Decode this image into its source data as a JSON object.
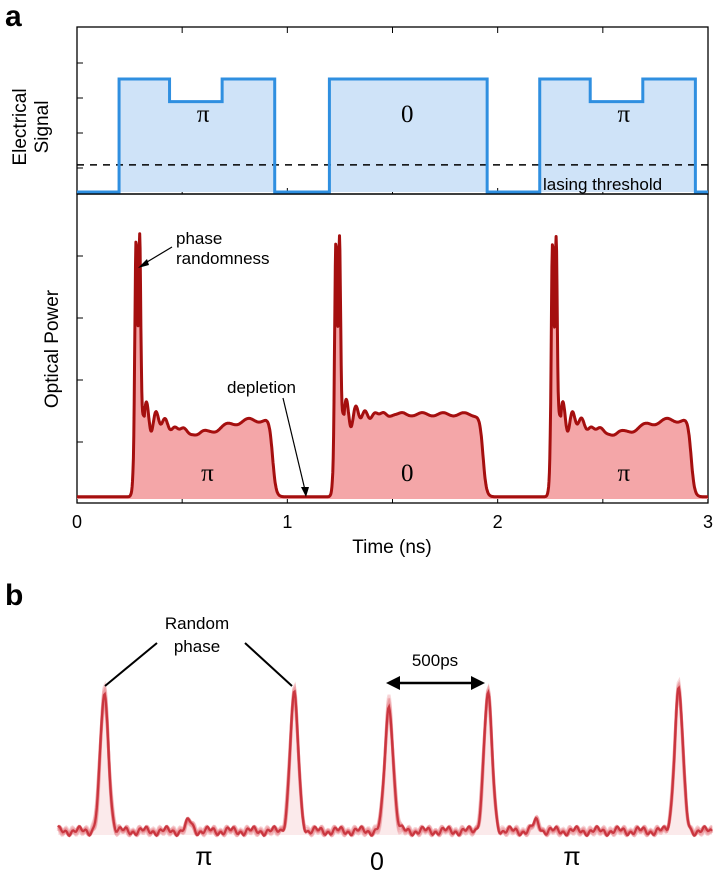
{
  "panel_a": {
    "label": "a",
    "electrical_ylabel_line1": "Electrical",
    "electrical_ylabel_line2": "Signal",
    "optical_ylabel": "Optical Power",
    "xlabel": "Time (ns)",
    "threshold_label": "lasing threshold",
    "annotations": {
      "phase_line1": "phase",
      "phase_line2": "randomness",
      "depletion": "depletion"
    }
  },
  "panel_b": {
    "label": "b",
    "annotation_line1": "Random",
    "annotation_line2": "phase",
    "spacing_label": "500ps",
    "phase_labels": [
      "π",
      "0",
      "π"
    ]
  },
  "colors": {
    "electrical_line": "#2f8fe0",
    "electrical_fill": "#cfe3f8",
    "optical_line": "#a50f0f",
    "optical_fill": "#f4a6a8",
    "scope_trace": "#e0505a"
  },
  "chart_data": [
    {
      "type": "line",
      "name": "electrical-signal",
      "x_unit": "ns",
      "xlim": [
        0,
        3
      ],
      "threshold_level": 0.24,
      "level_scale": "normalized 0-1 (low = 0, high = 1)",
      "segments": [
        {
          "x0": 0.0,
          "x1": 0.2,
          "level": 0.0
        },
        {
          "x0": 0.2,
          "x1": 0.44,
          "level": 1.0
        },
        {
          "x0": 0.44,
          "x1": 0.69,
          "level": 0.8
        },
        {
          "x0": 0.69,
          "x1": 0.94,
          "level": 1.0
        },
        {
          "x0": 0.94,
          "x1": 1.2,
          "level": 0.0
        },
        {
          "x0": 1.2,
          "x1": 1.95,
          "level": 1.0
        },
        {
          "x0": 1.95,
          "x1": 2.2,
          "level": 0.0
        },
        {
          "x0": 2.2,
          "x1": 2.44,
          "level": 1.0
        },
        {
          "x0": 2.44,
          "x1": 2.69,
          "level": 0.8
        },
        {
          "x0": 2.69,
          "x1": 2.94,
          "level": 1.0
        },
        {
          "x0": 2.94,
          "x1": 3.0,
          "level": 0.0
        }
      ],
      "pulse_labels": [
        {
          "x": 0.6,
          "text": "π"
        },
        {
          "x": 1.57,
          "text": "0"
        },
        {
          "x": 2.6,
          "text": "π"
        }
      ]
    },
    {
      "type": "line",
      "name": "optical-power",
      "xlabel": "Time (ns)",
      "xlim": [
        0,
        3
      ],
      "xticks": [
        0,
        1,
        2,
        3
      ],
      "ylim": [
        0,
        1
      ],
      "pulses": [
        {
          "t_on": 0.27,
          "t_off": 0.93,
          "peak": 0.98,
          "plateau_start": 0.3,
          "plateau_end": 0.28,
          "dip": true
        },
        {
          "t_on": 1.22,
          "t_off": 1.93,
          "peak": 0.97,
          "plateau_start": 0.3,
          "plateau_end": 0.3,
          "dip": false
        },
        {
          "t_on": 2.25,
          "t_off": 2.92,
          "peak": 0.97,
          "plateau_start": 0.3,
          "plateau_end": 0.28,
          "dip": true
        }
      ],
      "pulse_labels": [
        {
          "x": 0.62,
          "text": "π"
        },
        {
          "x": 1.57,
          "text": "0"
        },
        {
          "x": 2.6,
          "text": "π"
        }
      ]
    },
    {
      "type": "line",
      "name": "interference-trace",
      "x_unit": "ps",
      "xlim": [
        0,
        3240
      ],
      "peak_spacing": 500,
      "peaks": [
        {
          "x": 230,
          "height": 0.6
        },
        {
          "x": 1170,
          "height": 0.6
        },
        {
          "x": 1640,
          "height": 0.55
        },
        {
          "x": 2130,
          "height": 0.6
        },
        {
          "x": 3075,
          "height": 0.63
        }
      ],
      "small_bumps": [
        650,
        2370
      ]
    }
  ]
}
